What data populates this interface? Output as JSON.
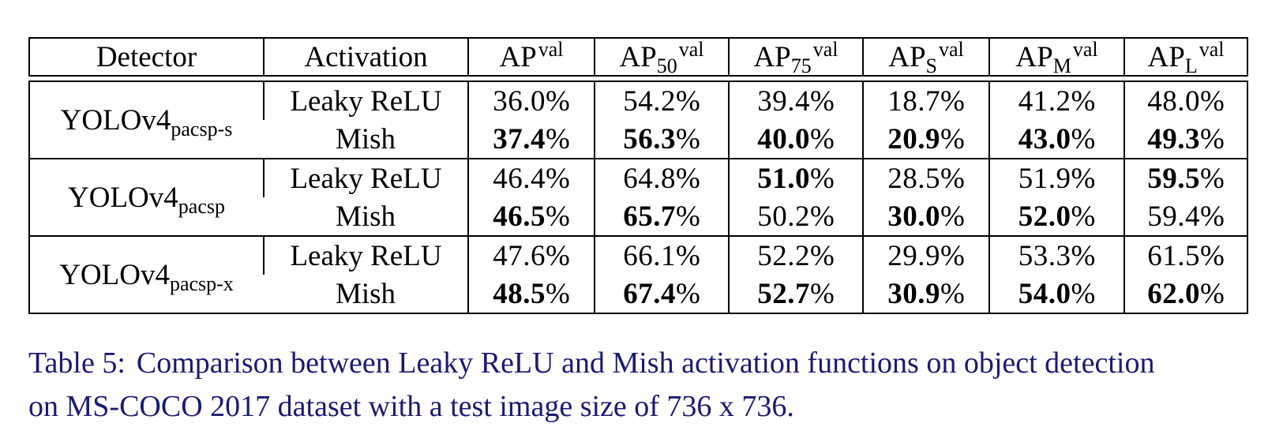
{
  "table": {
    "border_color": "#000000",
    "text_color": "#000000",
    "unit": "%",
    "columns": {
      "detector": "Detector",
      "activation": "Activation",
      "metrics": [
        {
          "base": "AP",
          "sub": "",
          "sup": "val"
        },
        {
          "base": "AP",
          "sub": "50",
          "sup": "val"
        },
        {
          "base": "AP",
          "sub": "75",
          "sup": "val"
        },
        {
          "base": "AP",
          "sub": "S",
          "sup": "val"
        },
        {
          "base": "AP",
          "sub": "M",
          "sup": "val"
        },
        {
          "base": "AP",
          "sub": "L",
          "sup": "val"
        }
      ]
    },
    "groups": [
      {
        "detector": {
          "base": "YOLOv4",
          "sub": "pacsp-s"
        },
        "rows": [
          {
            "activation": "Leaky ReLU",
            "values": [
              {
                "v": "36.0",
                "bold": false
              },
              {
                "v": "54.2",
                "bold": false
              },
              {
                "v": "39.4",
                "bold": false
              },
              {
                "v": "18.7",
                "bold": false
              },
              {
                "v": "41.2",
                "bold": false
              },
              {
                "v": "48.0",
                "bold": false
              }
            ]
          },
          {
            "activation": "Mish",
            "values": [
              {
                "v": "37.4",
                "bold": true
              },
              {
                "v": "56.3",
                "bold": true
              },
              {
                "v": "40.0",
                "bold": true
              },
              {
                "v": "20.9",
                "bold": true
              },
              {
                "v": "43.0",
                "bold": true
              },
              {
                "v": "49.3",
                "bold": true
              }
            ]
          }
        ]
      },
      {
        "detector": {
          "base": "YOLOv4",
          "sub": "pacsp"
        },
        "rows": [
          {
            "activation": "Leaky ReLU",
            "values": [
              {
                "v": "46.4",
                "bold": false
              },
              {
                "v": "64.8",
                "bold": false
              },
              {
                "v": "51.0",
                "bold": true
              },
              {
                "v": "28.5",
                "bold": false
              },
              {
                "v": "51.9",
                "bold": false
              },
              {
                "v": "59.5",
                "bold": true
              }
            ]
          },
          {
            "activation": "Mish",
            "values": [
              {
                "v": "46.5",
                "bold": true
              },
              {
                "v": "65.7",
                "bold": true
              },
              {
                "v": "50.2",
                "bold": false
              },
              {
                "v": "30.0",
                "bold": true
              },
              {
                "v": "52.0",
                "bold": true
              },
              {
                "v": "59.4",
                "bold": false
              }
            ]
          }
        ]
      },
      {
        "detector": {
          "base": "YOLOv4",
          "sub": "pacsp-x"
        },
        "rows": [
          {
            "activation": "Leaky ReLU",
            "values": [
              {
                "v": "47.6",
                "bold": false
              },
              {
                "v": "66.1",
                "bold": false
              },
              {
                "v": "52.2",
                "bold": false
              },
              {
                "v": "29.9",
                "bold": false
              },
              {
                "v": "53.3",
                "bold": false
              },
              {
                "v": "61.5",
                "bold": false
              }
            ]
          },
          {
            "activation": "Mish",
            "values": [
              {
                "v": "48.5",
                "bold": true
              },
              {
                "v": "67.4",
                "bold": true
              },
              {
                "v": "52.7",
                "bold": true
              },
              {
                "v": "30.9",
                "bold": true
              },
              {
                "v": "54.0",
                "bold": true
              },
              {
                "v": "62.0",
                "bold": true
              }
            ]
          }
        ]
      }
    ]
  },
  "caption": {
    "label": "Table 5:",
    "lines": [
      "Comparison between Leaky ReLU and Mish activation functions on object detection",
      "on MS-COCO 2017 dataset with a test image size of 736 x 736."
    ],
    "color": "#1a1a75"
  }
}
